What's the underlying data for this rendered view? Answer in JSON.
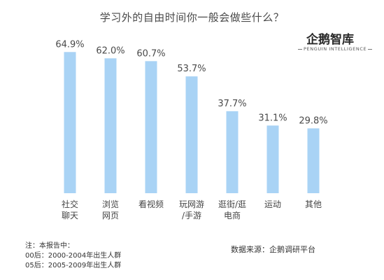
{
  "chart_data": {
    "type": "bar",
    "title": "学习外的自由时间你一般会做些什么？",
    "categories": [
      "社交\n聊天",
      "浏览\n网页",
      "看视频",
      "玩网游\n/手游",
      "逛街/逛\n电商",
      "运动",
      "其他"
    ],
    "values": [
      64.9,
      62.0,
      60.7,
      53.7,
      37.7,
      31.1,
      29.8
    ],
    "value_labels": [
      "64.9%",
      "62.0%",
      "60.7%",
      "53.7%",
      "37.7%",
      "31.1%",
      "29.8%"
    ],
    "unit": "%",
    "ylim": [
      0,
      65
    ],
    "grid": false,
    "legend": "none",
    "bar_color": "#a9d3f5"
  },
  "brand": {
    "name": "企鹅智库",
    "subtitle": "PENGUIN INTELLIGENCE"
  },
  "notes": {
    "lines": [
      "注：本报告中：",
      "00后：2000-2004年出生人群",
      "05后：2005-2009年出生人群"
    ]
  },
  "source": "数据来源：企鹅调研平台"
}
